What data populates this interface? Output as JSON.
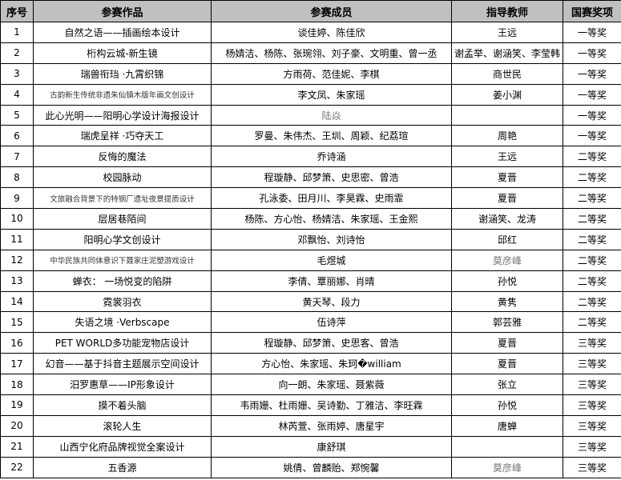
{
  "headers": [
    "序号",
    "参赛作品",
    "参赛成员",
    "指导教师",
    "国赛奖项"
  ],
  "rows": [
    {
      "no": "1",
      "work": "自然之语——插画绘本设计",
      "members": "谈佳婷、陈佳欣",
      "teacher": "王远",
      "award": "一等奖"
    },
    {
      "no": "2",
      "work": "桁构云城-新生镜",
      "members": "杨婧洁、杨陈、张琬翎、刘子豪、文明重、曾一丞",
      "teacher": "谢孟举、谢涵笑、李莹韩",
      "award": "一等奖"
    },
    {
      "no": "3",
      "work": "瑞兽衔珰 ·九霄织锦",
      "members": "方雨荷、范佳妮、李棋",
      "teacher": "商世民",
      "award": "一等奖"
    },
    {
      "no": "4",
      "work": "古韵新生传统非遗朱仙镇木版年画文创设计",
      "members": "李文凤、朱家瑶",
      "teacher": "姜小渊",
      "award": "一等奖",
      "work_small": true
    },
    {
      "no": "5",
      "work": "此心光明——阳明心学设计海报设计",
      "members": "陆焱",
      "teacher": "",
      "award": "一等奖",
      "members_gray": true
    },
    {
      "no": "6",
      "work": "瑞虎呈祥 ·巧夺天工",
      "members": "罗曼、朱伟杰、王圳、周颖、纪荔瑄",
      "teacher": "周艳",
      "award": "一等奖"
    },
    {
      "no": "7",
      "work": "反悔的魔法",
      "members": "乔诗涵",
      "teacher": "王远",
      "award": "二等奖"
    },
    {
      "no": "8",
      "work": "校园脉动",
      "members": "程璇静、邱梦箫、史思密、曾浩",
      "teacher": "夏晋",
      "award": "二等奖"
    },
    {
      "no": "9",
      "work": "文旅融合背景下的特钢厂遗址夜景提质设计",
      "members": "孔泳委、田月川、李昊霖、史雨霏",
      "teacher": "夏晋",
      "award": "二等奖",
      "work_small": true
    },
    {
      "no": "10",
      "work": "层居巷陌间",
      "members": "杨陈、方心怡、杨婧洁、朱家瑶、王金熙",
      "teacher": "谢涵笑、龙涛",
      "award": "二等奖"
    },
    {
      "no": "11",
      "work": "阳明心学文创设计",
      "members": "邓飘怡、刘诗怡",
      "teacher": "邱红",
      "award": "二等奖"
    },
    {
      "no": "12",
      "work": "中华民族共同体意识下聂家庄泥塑游戏设计",
      "members": "毛煜城",
      "teacher": "莫彦峰",
      "award": "二等奖",
      "work_small": true,
      "teacher_gray": true
    },
    {
      "no": "13",
      "work": "蝉衣： 一场悦变的陷阱",
      "members": "李倩、覃丽娜、肖晴",
      "teacher": "孙悦",
      "award": "二等奖"
    },
    {
      "no": "14",
      "work": "霓裳羽衣",
      "members": "黄天琴、段力",
      "teacher": "黄隽",
      "award": "二等奖"
    },
    {
      "no": "15",
      "work": "失语之境 ·Verbscape",
      "members": "伍诗萍",
      "teacher": "郭芸雅",
      "award": "二等奖"
    },
    {
      "no": "16",
      "work": "PET WORLD多功能宠物店设计",
      "members": "程璇静、邱梦箫、史思客、曾浩",
      "teacher": "夏晋",
      "award": "三等奖"
    },
    {
      "no": "17",
      "work": "幻音——基于抖音主题展示空间设计",
      "members": "方心怡、朱家瑶、朱珂�william",
      "teacher": "夏晋",
      "award": "三等奖"
    },
    {
      "no": "18",
      "work": "汨罗惠草——IP形象设计",
      "members": "向一朗、朱家瑶、聂紫薇",
      "teacher": "张立",
      "award": "三等奖"
    },
    {
      "no": "19",
      "work": "摸不着头脑",
      "members": "韦雨姗、杜雨姗、吴诗勤、丁雅洁、李旺霖",
      "teacher": "孙悦",
      "award": "三等奖"
    },
    {
      "no": "20",
      "work": "滚轮人生",
      "members": "林芮萱、张雨婷、唐星宇",
      "teacher": "唐蝉",
      "award": "三等奖"
    },
    {
      "no": "21",
      "work": "山西宁化府品牌视觉全案设计",
      "members": "康舒琪",
      "teacher": "",
      "award": "三等奖"
    },
    {
      "no": "22",
      "work": "五香源",
      "members": "姚倩、曾麟贻、郑惋馨",
      "teacher": "莫彦峰",
      "award": "三等奖",
      "teacher_gray": true
    }
  ]
}
